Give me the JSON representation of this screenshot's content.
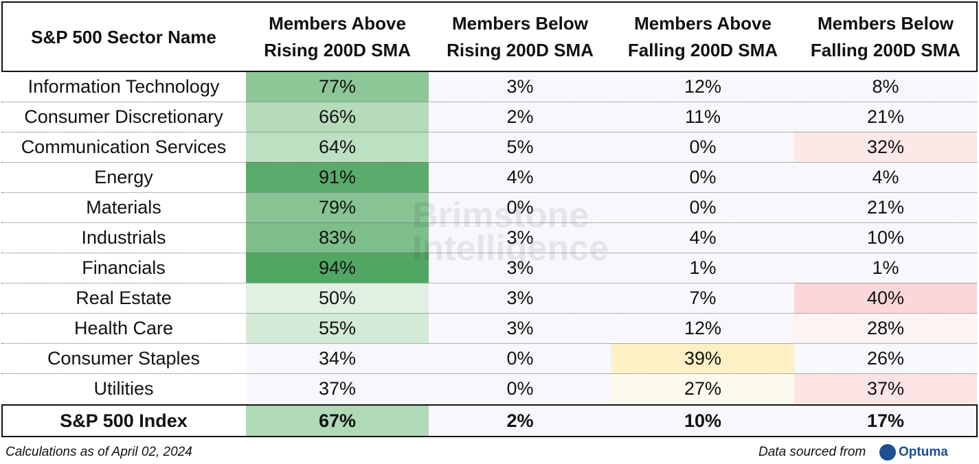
{
  "table": {
    "header": [
      "S&P 500 Sector Name",
      "Members Above Rising 200D SMA",
      "Members Below Rising 200D SMA",
      "Members Above Falling 200D SMA",
      "Members Below Falling 200D SMA"
    ],
    "rows": [
      [
        "Information Technology",
        "77%",
        "3%",
        "12%",
        "8%"
      ],
      [
        "Consumer Discretionary",
        "66%",
        "2%",
        "11%",
        "21%"
      ],
      [
        "Communication Services",
        "64%",
        "5%",
        "0%",
        "32%"
      ],
      [
        "Energy",
        "91%",
        "4%",
        "0%",
        "4%"
      ],
      [
        "Materials",
        "79%",
        "0%",
        "0%",
        "21%"
      ],
      [
        "Industrials",
        "83%",
        "3%",
        "4%",
        "10%"
      ],
      [
        "Financials",
        "94%",
        "3%",
        "1%",
        "1%"
      ],
      [
        "Real Estate",
        "50%",
        "3%",
        "7%",
        "40%"
      ],
      [
        "Health Care",
        "55%",
        "3%",
        "12%",
        "28%"
      ],
      [
        "Consumer Staples",
        "34%",
        "0%",
        "39%",
        "26%"
      ],
      [
        "Utilities",
        "37%",
        "0%",
        "27%",
        "37%"
      ]
    ],
    "total": [
      "S&P 500 Index",
      "67%",
      "2%",
      "10%",
      "17%"
    ]
  },
  "watermark": "Brimstone Intelligence",
  "footer": {
    "note": "Calculations as of April 02, 2024",
    "source": "Data sourced from",
    "brand": "Optuma"
  }
}
